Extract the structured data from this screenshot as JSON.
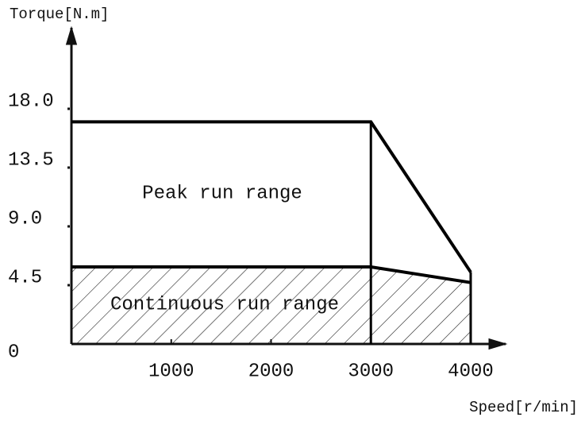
{
  "chart_data": {
    "type": "line",
    "y_label": "Torque[N.m]",
    "x_label": "Speed[r/min]",
    "xlim": [
      0,
      4350
    ],
    "ylim": [
      0,
      24.2
    ],
    "xticks": [
      1000,
      2000,
      3000,
      4000
    ],
    "yticks": [
      0,
      4.5,
      {
        "value": 9,
        "label": "9.0"
      },
      13.5,
      {
        "value": 18,
        "label": "18.0"
      }
    ],
    "series": [
      {
        "name": "Peak run range",
        "color": "#000000",
        "hatched": false,
        "x": [
          0,
          3000,
          4000
        ],
        "values": [
          17,
          17,
          5.5
        ]
      },
      {
        "name": "Continuous run range",
        "color": "#000000",
        "hatched": true,
        "x": [
          0,
          3000,
          4000
        ],
        "values": [
          5.9,
          5.9,
          4.7
        ]
      }
    ]
  }
}
